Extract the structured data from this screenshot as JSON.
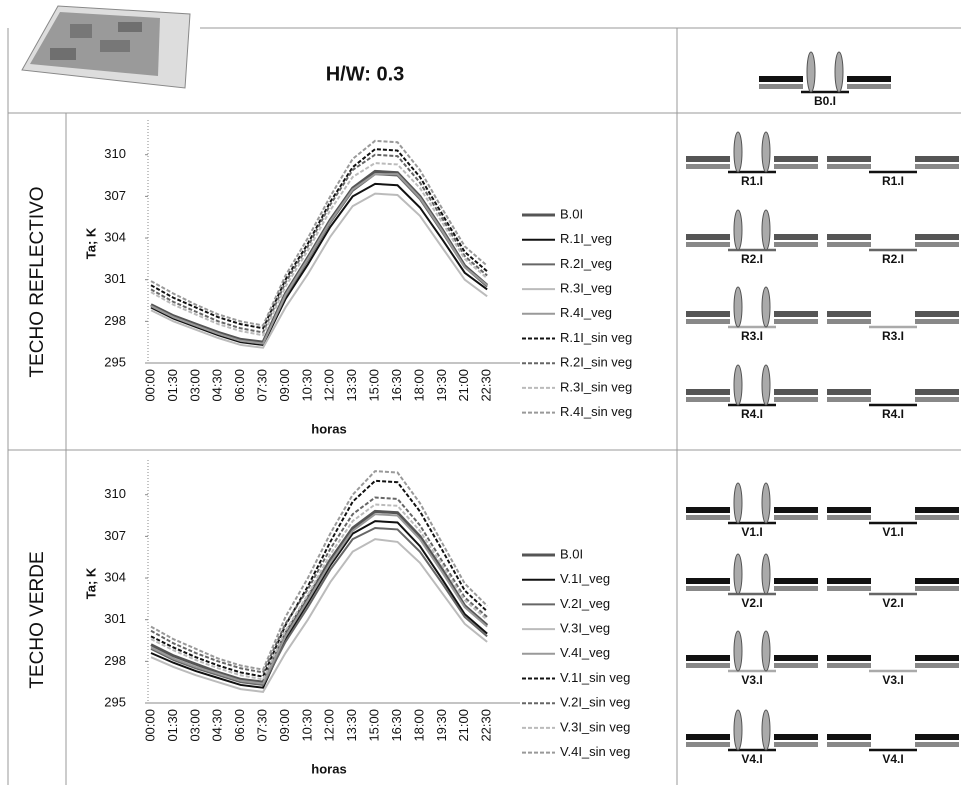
{
  "header": {
    "title": "H/W: 0.3"
  },
  "rows": [
    "TECHO REFLECTIVO",
    "TECHO VERDE"
  ],
  "diagrams": {
    "top": "B0.I",
    "reflective": [
      [
        "R1.I",
        "R1.I"
      ],
      [
        "R2.I",
        "R2.I"
      ],
      [
        "R3.I",
        "R3.I"
      ],
      [
        "R4.I",
        "R4.I"
      ]
    ],
    "green": [
      [
        "V1.I",
        "V1.I"
      ],
      [
        "V2.I",
        "V2.I"
      ],
      [
        "V3.I",
        "V3.I"
      ],
      [
        "V4.I",
        "V4.I"
      ]
    ]
  },
  "chart_data": [
    {
      "type": "line",
      "x_label": "horas",
      "y_label": "Ta; K",
      "categories": [
        "00:00",
        "01:30",
        "03:00",
        "04:30",
        "06:00",
        "07:30",
        "09:00",
        "10:30",
        "12:00",
        "13:30",
        "15:00",
        "16:30",
        "18:00",
        "19:30",
        "21:00",
        "22:30"
      ],
      "ylim": [
        295,
        312.5
      ],
      "yticks": [
        295,
        298,
        301,
        304,
        307,
        310
      ],
      "grid": false,
      "series": [
        {
          "name": "B.0I",
          "color": "#555555",
          "style": "thick",
          "values": [
            299.2,
            298.4,
            297.8,
            297.2,
            296.7,
            296.5,
            300.0,
            302.6,
            305.3,
            307.6,
            308.8,
            308.7,
            307.0,
            304.6,
            302.0,
            300.6
          ]
        },
        {
          "name": "R.1I_veg",
          "color": "#111111",
          "style": "solid",
          "values": [
            299.0,
            298.2,
            297.6,
            297.0,
            296.5,
            296.3,
            299.6,
            302.1,
            304.8,
            307.0,
            307.9,
            307.8,
            306.2,
            303.9,
            301.5,
            300.3
          ]
        },
        {
          "name": "R.2I_veg",
          "color": "#666666",
          "style": "solid",
          "values": [
            299.1,
            298.3,
            297.7,
            297.1,
            296.6,
            296.4,
            299.8,
            302.4,
            305.1,
            307.4,
            308.6,
            308.5,
            306.8,
            304.4,
            301.9,
            300.5
          ]
        },
        {
          "name": "R.3I_veg",
          "color": "#bbbbbb",
          "style": "solid",
          "values": [
            298.8,
            298.0,
            297.4,
            296.8,
            296.3,
            296.1,
            299.0,
            301.4,
            304.1,
            306.3,
            307.2,
            307.1,
            305.6,
            303.3,
            301.0,
            299.8
          ]
        },
        {
          "name": "R.4I_veg",
          "color": "#999999",
          "style": "solid",
          "values": [
            299.1,
            298.3,
            297.7,
            297.1,
            296.6,
            296.4,
            299.9,
            302.5,
            305.2,
            307.5,
            308.6,
            308.6,
            306.9,
            304.5,
            301.9,
            300.6
          ]
        },
        {
          "name": "R.1I_sin veg",
          "color": "#111111",
          "style": "dashed",
          "values": [
            300.6,
            299.7,
            299.0,
            298.3,
            297.8,
            297.5,
            301.0,
            303.6,
            306.6,
            309.1,
            310.4,
            310.3,
            308.4,
            305.7,
            303.0,
            301.6
          ]
        },
        {
          "name": "R.2I_sin veg",
          "color": "#666666",
          "style": "dashed",
          "values": [
            300.3,
            299.4,
            298.7,
            298.0,
            297.5,
            297.2,
            300.8,
            303.4,
            306.4,
            308.9,
            310.0,
            309.9,
            308.0,
            305.4,
            302.7,
            301.3
          ]
        },
        {
          "name": "R.3I_sin veg",
          "color": "#bbbbbb",
          "style": "dashed",
          "values": [
            300.1,
            299.2,
            298.5,
            297.8,
            297.3,
            297.0,
            300.5,
            303.1,
            306.0,
            308.4,
            309.4,
            309.3,
            307.6,
            305.1,
            302.5,
            301.1
          ]
        },
        {
          "name": "R.4I_sin veg",
          "color": "#999999",
          "style": "dashed",
          "values": [
            300.9,
            300.0,
            299.2,
            298.5,
            298.0,
            297.7,
            301.3,
            304.0,
            307.0,
            309.7,
            311.0,
            310.9,
            308.9,
            306.1,
            303.4,
            302.0
          ]
        }
      ]
    },
    {
      "type": "line",
      "x_label": "horas",
      "y_label": "Ta; K",
      "categories": [
        "00:00",
        "01:30",
        "03:00",
        "04:30",
        "06:00",
        "07:30",
        "09:00",
        "10:30",
        "12:00",
        "13:30",
        "15:00",
        "16:30",
        "18:00",
        "19:30",
        "21:00",
        "22:30"
      ],
      "ylim": [
        295,
        312.5
      ],
      "yticks": [
        295,
        298,
        301,
        304,
        307,
        310
      ],
      "grid": false,
      "series": [
        {
          "name": "B.0I",
          "color": "#555555",
          "style": "thick",
          "values": [
            299.2,
            298.4,
            297.8,
            297.2,
            296.7,
            296.5,
            300.0,
            302.6,
            305.3,
            307.6,
            308.8,
            308.7,
            307.0,
            304.6,
            302.0,
            300.6
          ]
        },
        {
          "name": "V.1I_veg",
          "color": "#111111",
          "style": "solid",
          "values": [
            298.6,
            297.9,
            297.3,
            296.8,
            296.3,
            296.1,
            299.6,
            302.2,
            304.9,
            307.2,
            308.1,
            308.0,
            306.3,
            303.9,
            301.4,
            300.0
          ]
        },
        {
          "name": "V.2I_veg",
          "color": "#666666",
          "style": "solid",
          "values": [
            298.9,
            298.1,
            297.5,
            297.0,
            296.5,
            296.3,
            299.4,
            301.9,
            304.6,
            306.8,
            307.6,
            307.5,
            305.9,
            303.6,
            301.2,
            299.8
          ]
        },
        {
          "name": "V.3I_veg",
          "color": "#bbbbbb",
          "style": "solid",
          "values": [
            298.3,
            297.6,
            297.0,
            296.5,
            296.0,
            295.8,
            298.6,
            301.0,
            303.7,
            305.9,
            306.8,
            306.6,
            305.1,
            302.9,
            300.7,
            299.4
          ]
        },
        {
          "name": "V.4I_veg",
          "color": "#999999",
          "style": "solid",
          "values": [
            299.0,
            298.2,
            297.6,
            297.1,
            296.6,
            296.4,
            299.8,
            302.4,
            305.1,
            307.4,
            308.6,
            308.5,
            306.8,
            304.4,
            301.9,
            300.5
          ]
        },
        {
          "name": "V.1I_sin veg",
          "color": "#111111",
          "style": "dashed",
          "values": [
            299.8,
            299.0,
            298.3,
            297.7,
            297.2,
            296.9,
            300.6,
            303.4,
            306.6,
            309.5,
            311.0,
            310.9,
            308.8,
            306.0,
            303.1,
            301.6
          ]
        },
        {
          "name": "V.2I_sin veg",
          "color": "#666666",
          "style": "dashed",
          "values": [
            300.2,
            299.3,
            298.6,
            298.0,
            297.5,
            297.2,
            300.7,
            303.2,
            306.1,
            308.6,
            309.8,
            309.7,
            307.8,
            305.2,
            302.6,
            301.2
          ]
        },
        {
          "name": "V.3I_sin veg",
          "color": "#bbbbbb",
          "style": "dashed",
          "values": [
            299.6,
            298.8,
            298.1,
            297.5,
            297.0,
            296.7,
            300.2,
            302.8,
            305.7,
            308.1,
            309.3,
            309.2,
            307.4,
            304.9,
            302.4,
            301.0
          ]
        },
        {
          "name": "V.4I_sin veg",
          "color": "#999999",
          "style": "dashed",
          "values": [
            300.5,
            299.6,
            298.9,
            298.2,
            297.7,
            297.4,
            301.2,
            304.0,
            307.2,
            310.0,
            311.7,
            311.6,
            309.4,
            306.5,
            303.6,
            302.0
          ]
        }
      ]
    }
  ]
}
